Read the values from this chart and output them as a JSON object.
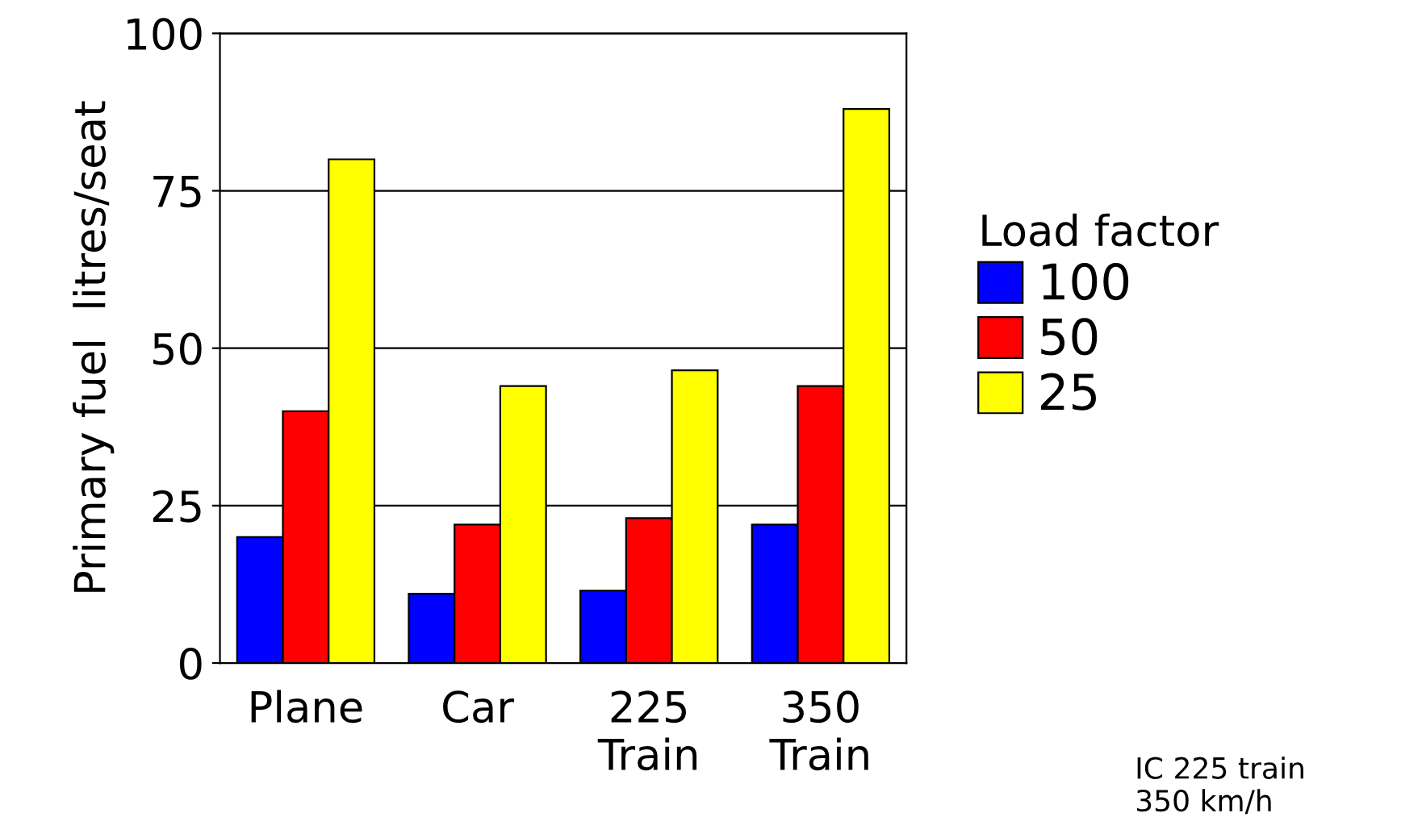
{
  "chart_data": {
    "type": "bar",
    "ylabel": "Primary fuel  litres/seat",
    "categories": [
      "Plane",
      "Car",
      "225\nTrain",
      "350\nTrain"
    ],
    "series": [
      {
        "name": "100",
        "color": "#0000ff",
        "values": [
          20,
          11,
          11.5,
          22
        ]
      },
      {
        "name": "50",
        "color": "#ff0000",
        "values": [
          40,
          22,
          23,
          44
        ]
      },
      {
        "name": "25",
        "color": "#ffff00",
        "values": [
          80,
          44,
          46.5,
          88
        ]
      }
    ],
    "legend_title": "Load factor",
    "legend": "right",
    "ylim": [
      0,
      100
    ],
    "yticks": [
      0,
      25,
      50,
      75,
      100
    ],
    "grid": "y",
    "annotations": [
      "IC 225 train\n350 km/h"
    ]
  }
}
